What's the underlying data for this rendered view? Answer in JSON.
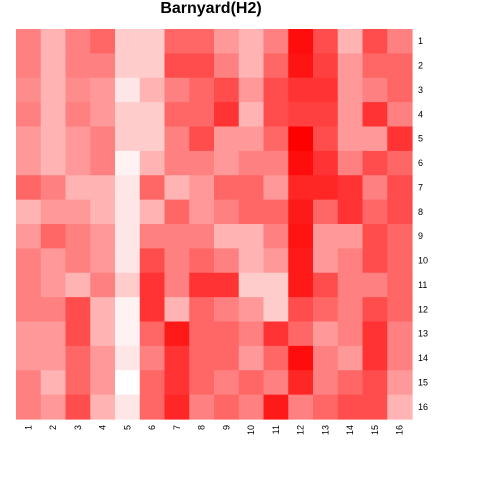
{
  "chart_data": {
    "type": "heatmap",
    "title": "Barnyard(H2)",
    "x_labels": [
      "1",
      "2",
      "3",
      "4",
      "5",
      "6",
      "7",
      "8",
      "9",
      "10",
      "11",
      "12",
      "13",
      "14",
      "15",
      "16"
    ],
    "y_labels": [
      "1",
      "2",
      "3",
      "4",
      "5",
      "6",
      "7",
      "8",
      "9",
      "10",
      "11",
      "12",
      "13",
      "14",
      "15",
      "16"
    ],
    "color_low": "#ffffff",
    "color_high": "#ff0000",
    "value_range": [
      0,
      1
    ],
    "values": [
      [
        0.5,
        0.3,
        0.5,
        0.6,
        0.2,
        0.2,
        0.6,
        0.6,
        0.4,
        0.3,
        0.5,
        0.95,
        0.7,
        0.3,
        0.7,
        0.5
      ],
      [
        0.5,
        0.3,
        0.5,
        0.5,
        0.2,
        0.2,
        0.7,
        0.7,
        0.5,
        0.3,
        0.6,
        0.92,
        0.75,
        0.4,
        0.6,
        0.6
      ],
      [
        0.45,
        0.3,
        0.45,
        0.4,
        0.1,
        0.3,
        0.5,
        0.6,
        0.7,
        0.4,
        0.7,
        0.8,
        0.8,
        0.4,
        0.5,
        0.6
      ],
      [
        0.5,
        0.3,
        0.5,
        0.4,
        0.2,
        0.2,
        0.6,
        0.6,
        0.8,
        0.3,
        0.7,
        0.75,
        0.75,
        0.4,
        0.8,
        0.5
      ],
      [
        0.4,
        0.3,
        0.4,
        0.5,
        0.2,
        0.2,
        0.5,
        0.7,
        0.4,
        0.4,
        0.6,
        1.0,
        0.7,
        0.4,
        0.4,
        0.8
      ],
      [
        0.4,
        0.3,
        0.4,
        0.5,
        0.05,
        0.3,
        0.5,
        0.5,
        0.4,
        0.5,
        0.5,
        0.95,
        0.8,
        0.5,
        0.7,
        0.6
      ],
      [
        0.6,
        0.5,
        0.3,
        0.3,
        0.1,
        0.6,
        0.3,
        0.4,
        0.6,
        0.6,
        0.4,
        0.85,
        0.85,
        0.8,
        0.5,
        0.7
      ],
      [
        0.3,
        0.4,
        0.4,
        0.3,
        0.1,
        0.3,
        0.6,
        0.4,
        0.5,
        0.6,
        0.6,
        0.9,
        0.6,
        0.8,
        0.6,
        0.7
      ],
      [
        0.4,
        0.6,
        0.5,
        0.4,
        0.1,
        0.5,
        0.5,
        0.5,
        0.3,
        0.3,
        0.5,
        0.92,
        0.4,
        0.4,
        0.7,
        0.6
      ],
      [
        0.5,
        0.4,
        0.5,
        0.4,
        0.1,
        0.7,
        0.5,
        0.6,
        0.5,
        0.3,
        0.4,
        0.9,
        0.4,
        0.5,
        0.7,
        0.6
      ],
      [
        0.5,
        0.4,
        0.3,
        0.5,
        0.2,
        0.8,
        0.5,
        0.8,
        0.8,
        0.2,
        0.2,
        0.9,
        0.7,
        0.5,
        0.5,
        0.6
      ],
      [
        0.5,
        0.5,
        0.7,
        0.3,
        0.05,
        0.8,
        0.3,
        0.6,
        0.5,
        0.4,
        0.2,
        0.7,
        0.6,
        0.5,
        0.7,
        0.6
      ],
      [
        0.4,
        0.4,
        0.7,
        0.3,
        0.05,
        0.6,
        0.9,
        0.6,
        0.6,
        0.5,
        0.8,
        0.6,
        0.4,
        0.5,
        0.8,
        0.5
      ],
      [
        0.4,
        0.4,
        0.6,
        0.4,
        0.1,
        0.5,
        0.8,
        0.6,
        0.6,
        0.4,
        0.6,
        0.95,
        0.5,
        0.4,
        0.8,
        0.5
      ],
      [
        0.5,
        0.3,
        0.6,
        0.4,
        0.0,
        0.6,
        0.8,
        0.6,
        0.5,
        0.6,
        0.5,
        0.85,
        0.5,
        0.6,
        0.7,
        0.4
      ],
      [
        0.5,
        0.4,
        0.7,
        0.3,
        0.1,
        0.6,
        0.85,
        0.5,
        0.6,
        0.5,
        0.9,
        0.5,
        0.6,
        0.7,
        0.7,
        0.3
      ]
    ]
  }
}
